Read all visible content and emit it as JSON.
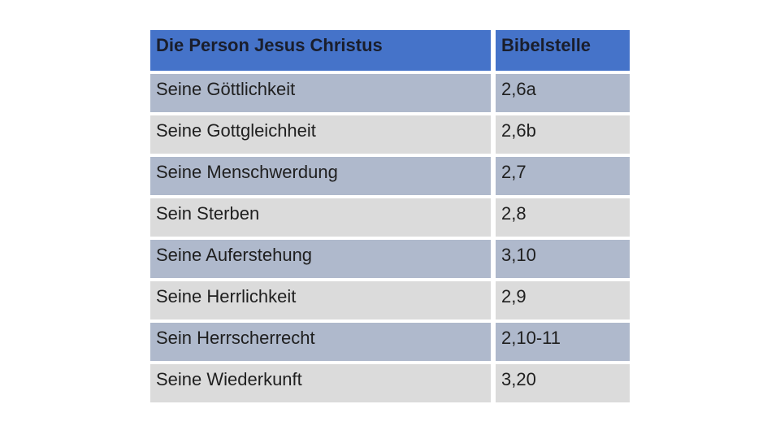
{
  "colors": {
    "header-bg": "#4573C9",
    "row-blue": "#AFB9CC",
    "row-gray": "#DBDBDB",
    "header-text": "#1A1E2C",
    "body-text": "#1F1F1F"
  },
  "table": {
    "headers": {
      "topic": "Die Person Jesus Christus",
      "reference": "Bibelstelle"
    },
    "rows": [
      {
        "topic": "Seine Göttlichkeit",
        "reference": "2,6a"
      },
      {
        "topic": "Seine Gottgleichheit",
        "reference": "2,6b"
      },
      {
        "topic": "Seine Menschwerdung",
        "reference": "2,7"
      },
      {
        "topic": "Sein Sterben",
        "reference": "2,8"
      },
      {
        "topic": "Seine Auferstehung",
        "reference": "3,10"
      },
      {
        "topic": "Seine Herrlichkeit",
        "reference": "2,9"
      },
      {
        "topic": "Sein Herrscherrecht",
        "reference": "2,10-11"
      },
      {
        "topic": "Seine Wiederkunft",
        "reference": "3,20"
      }
    ]
  }
}
